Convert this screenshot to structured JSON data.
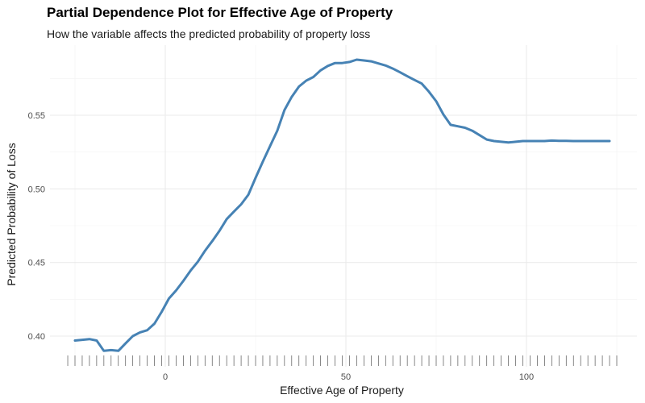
{
  "chart_data": {
    "type": "line",
    "title": "Partial Dependence Plot for Effective Age of Property",
    "subtitle": "How the variable affects the predicted probability of property loss",
    "xlabel": "Effective Age of Property",
    "ylabel": "Predicted Probability of Loss",
    "xlim": [
      -27,
      125
    ],
    "ylim": [
      0.385,
      0.592
    ],
    "x_ticks": [
      0,
      50,
      100
    ],
    "x_tick_labels": [
      "0",
      "50",
      "100"
    ],
    "y_ticks": [
      0.4,
      0.45,
      0.5,
      0.55
    ],
    "y_tick_labels": [
      "0.40",
      "0.45",
      "0.50",
      "0.55"
    ],
    "grid": true,
    "rug": true,
    "line_color": "#4682b4",
    "series": [
      {
        "x": [
          -25,
          -23,
          -21,
          -19,
          -17,
          -15,
          -13,
          -11,
          -9,
          -7,
          -5,
          -3,
          -1,
          1,
          3,
          5,
          7,
          9,
          11,
          13,
          15,
          17,
          19,
          21,
          23,
          25,
          27,
          29,
          31,
          33,
          35,
          37,
          39,
          41,
          43,
          45,
          47,
          49,
          51,
          53,
          55,
          57,
          59,
          61,
          63,
          65,
          67,
          69,
          71,
          73,
          75,
          77,
          79,
          81,
          83,
          85,
          87,
          89,
          91,
          93,
          95,
          97,
          99,
          101,
          103,
          105,
          107,
          109,
          111,
          113,
          115,
          117,
          119,
          121,
          123
        ],
        "y": [
          0.397,
          0.3975,
          0.398,
          0.397,
          0.39,
          0.3905,
          0.39,
          0.395,
          0.4,
          0.4025,
          0.404,
          0.4085,
          0.4165,
          0.4255,
          0.431,
          0.4375,
          0.4445,
          0.4505,
          0.458,
          0.4645,
          0.4715,
          0.4795,
          0.4845,
          0.4895,
          0.496,
          0.5075,
          0.5185,
          0.529,
          0.5395,
          0.5535,
          0.5625,
          0.5695,
          0.5735,
          0.576,
          0.5805,
          0.5835,
          0.5855,
          0.5855,
          0.5862,
          0.5878,
          0.5872,
          0.5866,
          0.5852,
          0.5838,
          0.5817,
          0.5792,
          0.5765,
          0.574,
          0.5715,
          0.566,
          0.5595,
          0.5505,
          0.5435,
          0.5425,
          0.5415,
          0.5395,
          0.5365,
          0.5335,
          0.5325,
          0.532,
          0.5315,
          0.532,
          0.5325,
          0.5325,
          0.5325,
          0.5325,
          0.5328,
          0.5326,
          0.5326,
          0.5325,
          0.5325,
          0.5325,
          0.5325,
          0.5325,
          0.5325
        ]
      }
    ],
    "rug_x": [
      -27,
      -25,
      -23,
      -21,
      -19,
      -17,
      -15,
      -13,
      -11,
      -9,
      -7,
      -5,
      -3,
      -1,
      1,
      3,
      5,
      7,
      9,
      11,
      13,
      15,
      17,
      19,
      21,
      23,
      25,
      27,
      29,
      31,
      33,
      35,
      37,
      39,
      41,
      43,
      45,
      47,
      49,
      51,
      53,
      55,
      57,
      59,
      61,
      63,
      65,
      67,
      69,
      71,
      73,
      75,
      77,
      79,
      81,
      83,
      85,
      87,
      89,
      91,
      93,
      95,
      97,
      99,
      101,
      103,
      105,
      107,
      109,
      111,
      113,
      115,
      117,
      119,
      121,
      123,
      125
    ]
  }
}
